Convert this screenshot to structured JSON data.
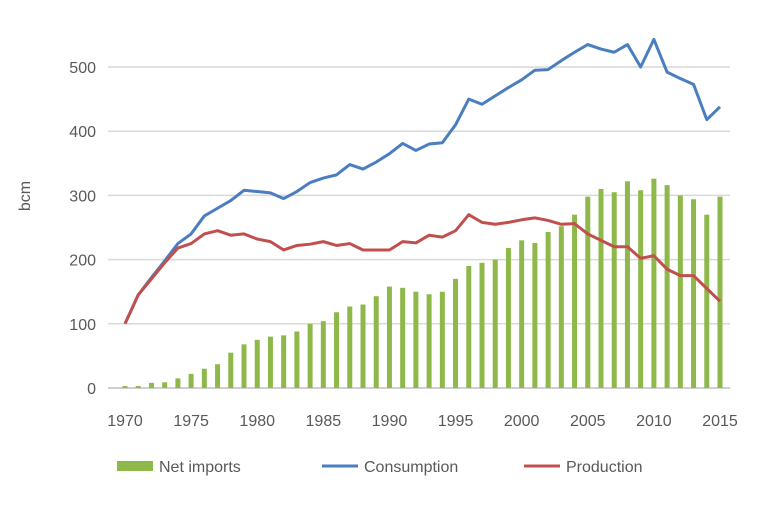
{
  "chart_data": {
    "type": "bar+line",
    "title": "",
    "xlabel": "",
    "ylabel": "bcm",
    "ylim": [
      0,
      550
    ],
    "yticks": [
      "0",
      "100",
      "200",
      "300",
      "400",
      "500"
    ],
    "xticks": [
      "1970",
      "1975",
      "1980",
      "1985",
      "1990",
      "1995",
      "2000",
      "2005",
      "2010",
      "2015"
    ],
    "grid": true,
    "legend": "bottom",
    "x": [
      1970,
      1971,
      1972,
      1973,
      1974,
      1975,
      1976,
      1977,
      1978,
      1979,
      1980,
      1981,
      1982,
      1983,
      1984,
      1985,
      1986,
      1987,
      1988,
      1989,
      1990,
      1991,
      1992,
      1993,
      1994,
      1995,
      1996,
      1997,
      1998,
      1999,
      2000,
      2001,
      2002,
      2003,
      2004,
      2005,
      2006,
      2007,
      2008,
      2009,
      2010,
      2011,
      2012,
      2013,
      2014,
      2015
    ],
    "series": [
      {
        "name": "Net imports",
        "type": "bar",
        "color": "#8fb84a",
        "values": [
          3,
          3,
          8,
          9,
          15,
          22,
          30,
          37,
          55,
          68,
          75,
          80,
          82,
          88,
          100,
          104,
          118,
          127,
          130,
          143,
          158,
          156,
          150,
          146,
          150,
          170,
          190,
          195,
          200,
          218,
          230,
          226,
          243,
          252,
          270,
          298,
          310,
          305,
          322,
          308,
          326,
          316,
          300,
          294,
          270,
          298
        ]
      },
      {
        "name": "Consumption",
        "type": "line",
        "color": "#4a7ebf",
        "values": [
          100,
          145,
          172,
          198,
          225,
          240,
          268,
          280,
          292,
          308,
          306,
          304,
          295,
          306,
          320,
          327,
          332,
          348,
          341,
          352,
          365,
          381,
          370,
          380,
          382,
          410,
          450,
          442,
          455,
          468,
          480,
          495,
          496,
          510,
          523,
          535,
          528,
          523,
          535,
          500,
          543,
          492,
          482,
          473,
          418,
          438
        ]
      },
      {
        "name": "Production",
        "type": "line",
        "color": "#c0504d",
        "values": [
          100,
          145,
          170,
          195,
          218,
          225,
          240,
          245,
          238,
          240,
          232,
          228,
          215,
          222,
          224,
          228,
          222,
          225,
          215,
          215,
          215,
          228,
          226,
          238,
          235,
          245,
          270,
          258,
          255,
          258,
          262,
          265,
          261,
          255,
          256,
          240,
          230,
          220,
          220,
          202,
          206,
          185,
          175,
          175,
          155,
          135
        ]
      }
    ]
  }
}
